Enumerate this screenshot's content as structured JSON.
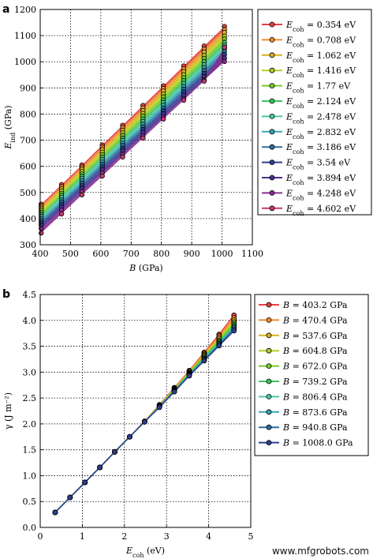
{
  "colors": [
    "#e8413e",
    "#f08a2c",
    "#d9b21f",
    "#b9cf22",
    "#77cb2a",
    "#3ec55d",
    "#4dc7a8",
    "#37a7b5",
    "#2f6f9f",
    "#2d3f8f",
    "#4a2f8f",
    "#8a2d92",
    "#c83a6e"
  ],
  "watermark": "www.mfgrobots.com",
  "chart_data": [
    {
      "panel_label": "a",
      "type": "scatter",
      "xlabel_italic": "B",
      "xlabel_rest": " (GPa)",
      "ylabel_italic": "E",
      "ylabel_sub": "ind",
      "ylabel_rest": " (GPa)",
      "xlim": [
        400,
        1100
      ],
      "ylim": [
        300,
        1200
      ],
      "xticks": [
        "400",
        "500",
        "600",
        "700",
        "800",
        "900",
        "1000",
        "1100"
      ],
      "yticks": [
        "300",
        "400",
        "500",
        "600",
        "700",
        "800",
        "900",
        "1000",
        "1100",
        "1200"
      ],
      "legend_placement": "right",
      "x": [
        403.2,
        470.4,
        537.6,
        604.8,
        672.0,
        739.2,
        806.4,
        873.6,
        940.8,
        1008.0
      ],
      "series": [
        {
          "name": "E_coh = 0.354 eV",
          "legend_label": "= 0.354 eV",
          "values": [
            455,
            530,
            605,
            682,
            757,
            833,
            908,
            984,
            1060,
            1135
          ]
        },
        {
          "name": "E_coh = 0.708 eV",
          "legend_label": "= 0.708 eV",
          "values": [
            448,
            522,
            597,
            673,
            748,
            823,
            898,
            973,
            1048,
            1123
          ]
        },
        {
          "name": "E_coh = 1.062 eV",
          "legend_label": "= 1.062 eV",
          "values": [
            440,
            514,
            589,
            664,
            738,
            813,
            888,
            962,
            1037,
            1112
          ]
        },
        {
          "name": "E_coh = 1.416 eV",
          "legend_label": "= 1.416 eV",
          "values": [
            432,
            506,
            580,
            654,
            728,
            802,
            876,
            950,
            1024,
            1098
          ]
        },
        {
          "name": "E_coh = 1.77 eV",
          "legend_label": "= 1.77 eV",
          "values": [
            424,
            497,
            571,
            645,
            718,
            792,
            866,
            939,
            1013,
            1087
          ]
        },
        {
          "name": "E_coh = 2.124 eV",
          "legend_label": "= 2.124 eV",
          "values": [
            416,
            489,
            562,
            635,
            708,
            781,
            854,
            928,
            1001,
            1074
          ]
        },
        {
          "name": "E_coh = 2.478 eV",
          "legend_label": "= 2.478 eV",
          "values": [
            408,
            481,
            554,
            626,
            699,
            771,
            844,
            917,
            989,
            1062
          ]
        },
        {
          "name": "E_coh = 2.832 eV",
          "legend_label": "= 2.832 eV",
          "values": [
            400,
            472,
            545,
            617,
            689,
            761,
            834,
            906,
            978,
            1051
          ]
        },
        {
          "name": "E_coh = 3.186 eV",
          "legend_label": "= 3.186 eV",
          "values": [
            392,
            464,
            536,
            608,
            680,
            751,
            823,
            895,
            967,
            1039
          ]
        },
        {
          "name": "E_coh = 3.54 eV",
          "legend_label": "= 3.54 eV",
          "values": [
            383,
            455,
            526,
            598,
            669,
            741,
            812,
            884,
            955,
            1027
          ]
        },
        {
          "name": "E_coh = 3.894 eV",
          "legend_label": "= 3.894 eV",
          "values": [
            374,
            445,
            516,
            588,
            659,
            730,
            801,
            872,
            943,
            1014
          ]
        },
        {
          "name": "E_coh = 4.248 eV",
          "legend_label": "= 4.248 eV",
          "values": [
            362,
            433,
            504,
            575,
            646,
            717,
            788,
            859,
            930,
            1001
          ]
        },
        {
          "name": "E_coh = 4.602 eV",
          "legend_label": "= 4.602 eV",
          "values": [
            345,
            418,
            491,
            563,
            636,
            708,
            781,
            853,
            926,
            1055
          ]
        }
      ]
    },
    {
      "panel_label": "b",
      "type": "line",
      "xlabel_italic": "E",
      "xlabel_sub": "coh",
      "xlabel_rest": " (eV)",
      "ylabel_text": "γ (J m⁻²)",
      "xlim": [
        0,
        5
      ],
      "ylim": [
        0.0,
        4.5
      ],
      "xticks": [
        "0",
        "1",
        "2",
        "3",
        "4",
        "5"
      ],
      "yticks": [
        "0.0",
        "0.5",
        "1.0",
        "1.5",
        "2.0",
        "2.5",
        "3.0",
        "3.5",
        "4.0",
        "4.5"
      ],
      "legend_placement": "right",
      "x": [
        0.354,
        0.708,
        1.062,
        1.416,
        1.77,
        2.124,
        2.478,
        2.832,
        3.186,
        3.54,
        3.894,
        4.248,
        4.602
      ],
      "series": [
        {
          "name": "B = 403.2 GPa",
          "legend_label": "= 403.2 GPa",
          "values": [
            0.29,
            0.58,
            0.87,
            1.16,
            1.46,
            1.75,
            2.05,
            2.37,
            2.7,
            3.03,
            3.38,
            3.73,
            4.1
          ]
        },
        {
          "name": "B = 470.4 GPa",
          "legend_label": "= 470.4 GPa",
          "values": [
            0.29,
            0.58,
            0.87,
            1.16,
            1.46,
            1.75,
            2.05,
            2.36,
            2.69,
            3.02,
            3.36,
            3.7,
            4.05
          ]
        },
        {
          "name": "B = 537.6 GPa",
          "legend_label": "= 537.6 GPa",
          "values": [
            0.29,
            0.58,
            0.87,
            1.16,
            1.46,
            1.75,
            2.05,
            2.36,
            2.68,
            3.01,
            3.34,
            3.67,
            4.01
          ]
        },
        {
          "name": "B = 604.8 GPa",
          "legend_label": "= 604.8 GPa",
          "values": [
            0.29,
            0.58,
            0.87,
            1.16,
            1.46,
            1.75,
            2.04,
            2.35,
            2.67,
            2.99,
            3.32,
            3.64,
            3.97
          ]
        },
        {
          "name": "B = 672.0 GPa",
          "legend_label": "= 672.0 GPa",
          "values": [
            0.29,
            0.58,
            0.87,
            1.16,
            1.46,
            1.75,
            2.04,
            2.35,
            2.66,
            2.98,
            3.3,
            3.61,
            3.94
          ]
        },
        {
          "name": "B = 739.2 GPa",
          "legend_label": "= 739.2 GPa",
          "values": [
            0.29,
            0.58,
            0.87,
            1.16,
            1.46,
            1.75,
            2.04,
            2.34,
            2.65,
            2.97,
            3.28,
            3.59,
            3.91
          ]
        },
        {
          "name": "B = 806.4 GPa",
          "legend_label": "= 806.4 GPa",
          "values": [
            0.29,
            0.58,
            0.87,
            1.16,
            1.46,
            1.75,
            2.04,
            2.34,
            2.64,
            2.96,
            3.26,
            3.57,
            3.88
          ]
        },
        {
          "name": "B = 873.6 GPa",
          "legend_label": "= 873.6 GPa",
          "values": [
            0.29,
            0.58,
            0.87,
            1.16,
            1.46,
            1.75,
            2.04,
            2.33,
            2.64,
            2.95,
            3.25,
            3.55,
            3.86
          ]
        },
        {
          "name": "B = 940.8 GPa",
          "legend_label": "= 940.8 GPa",
          "values": [
            0.29,
            0.58,
            0.87,
            1.16,
            1.46,
            1.75,
            2.04,
            2.33,
            2.63,
            2.94,
            3.23,
            3.53,
            3.83
          ]
        },
        {
          "name": "B = 1008.0 GPa",
          "legend_label": "= 1008.0 GPa",
          "values": [
            0.29,
            0.58,
            0.87,
            1.16,
            1.46,
            1.75,
            2.04,
            2.32,
            2.62,
            2.93,
            3.22,
            3.51,
            3.8
          ]
        }
      ]
    }
  ]
}
